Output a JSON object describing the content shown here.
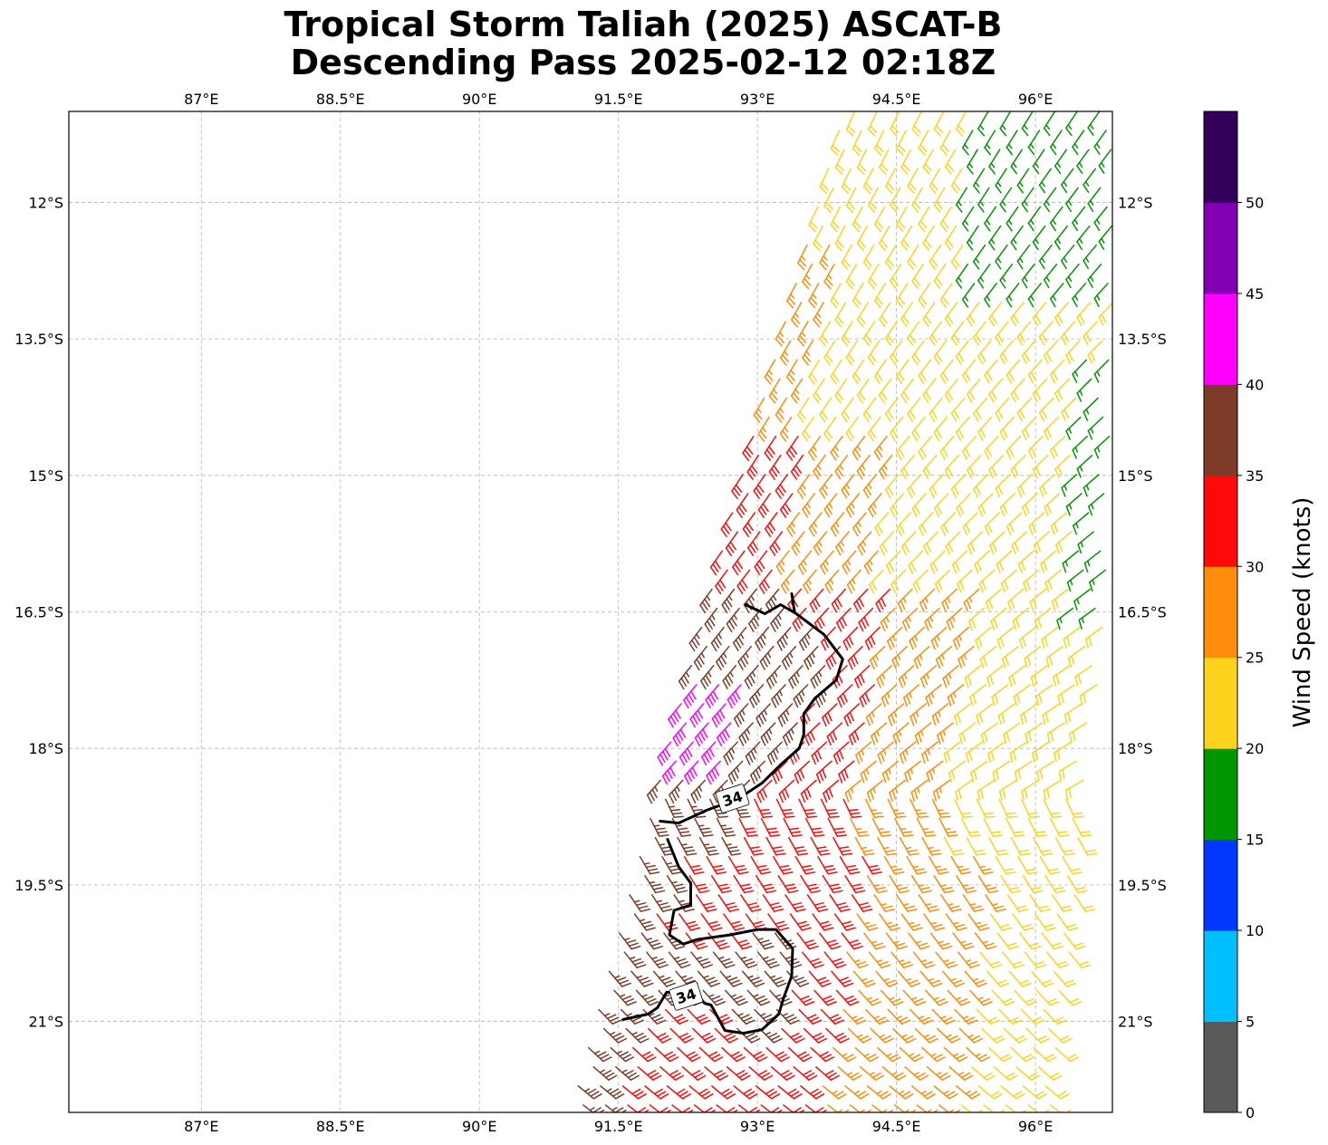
{
  "chart_data": {
    "type": "wind-barb-map",
    "title_line1": "Tropical Storm Taliah (2025) ASCAT-B",
    "title_line2": "Descending Pass 2025-02-12 02:18Z",
    "x_ticks": [
      {
        "value": 87.0,
        "label": "87°E"
      },
      {
        "value": 88.5,
        "label": "88.5°E"
      },
      {
        "value": 90.0,
        "label": "90°E"
      },
      {
        "value": 91.5,
        "label": "91.5°E"
      },
      {
        "value": 93.0,
        "label": "93°E"
      },
      {
        "value": 94.5,
        "label": "94.5°E"
      },
      {
        "value": 96.0,
        "label": "96°E"
      }
    ],
    "y_ticks": [
      {
        "value": -12.0,
        "label": "12°S"
      },
      {
        "value": -13.5,
        "label": "13.5°S"
      },
      {
        "value": -15.0,
        "label": "15°S"
      },
      {
        "value": -16.5,
        "label": "16.5°S"
      },
      {
        "value": -18.0,
        "label": "18°S"
      },
      {
        "value": -19.5,
        "label": "19.5°S"
      },
      {
        "value": -21.0,
        "label": "21°S"
      }
    ],
    "lon_range": [
      85.57,
      96.83
    ],
    "lat_range": [
      -22.0,
      -11.0
    ],
    "grid": true,
    "colorbar": {
      "label": "Wind Speed (knots)",
      "ticks": [
        "0",
        "5",
        "10",
        "15",
        "20",
        "25",
        "30",
        "35",
        "40",
        "45",
        "50"
      ],
      "bins": [
        {
          "min": 0,
          "max": 5,
          "color": "#5a5a5a"
        },
        {
          "min": 5,
          "max": 10,
          "color": "#00bfff"
        },
        {
          "min": 10,
          "max": 15,
          "color": "#0038ff"
        },
        {
          "min": 15,
          "max": 20,
          "color": "#009600"
        },
        {
          "min": 20,
          "max": 25,
          "color": "#ffd21e"
        },
        {
          "min": 25,
          "max": 30,
          "color": "#ff8c0a"
        },
        {
          "min": 30,
          "max": 35,
          "color": "#ff0a0a"
        },
        {
          "min": 35,
          "max": 40,
          "color": "#7d3c28"
        },
        {
          "min": 40,
          "max": 45,
          "color": "#ff00ff"
        },
        {
          "min": 45,
          "max": 50,
          "color": "#8200b4"
        },
        {
          "min": 50,
          "max": 55,
          "color": "#32005a"
        }
      ]
    },
    "contour_34kt": {
      "level_label": "34",
      "north_segment": [
        [
          92.87,
          -16.42
        ],
        [
          93.08,
          -16.52
        ],
        [
          93.25,
          -16.42
        ],
        [
          93.42,
          -16.52
        ],
        [
          93.72,
          -16.75
        ],
        [
          93.92,
          -17.02
        ],
        [
          93.85,
          -17.25
        ],
        [
          93.62,
          -17.45
        ],
        [
          93.5,
          -17.62
        ],
        [
          93.5,
          -17.85
        ],
        [
          93.45,
          -18.0
        ],
        [
          93.25,
          -18.18
        ],
        [
          93.05,
          -18.38
        ],
        [
          92.8,
          -18.55
        ],
        [
          92.45,
          -18.68
        ],
        [
          92.15,
          -18.82
        ],
        [
          91.95,
          -18.8
        ]
      ],
      "north_hook": [
        [
          93.37,
          -16.3
        ],
        [
          93.4,
          -16.5
        ]
      ],
      "south_segment": [
        [
          92.03,
          -19.0
        ],
        [
          92.15,
          -19.3
        ],
        [
          92.28,
          -19.48
        ],
        [
          92.28,
          -19.72
        ],
        [
          92.1,
          -19.78
        ],
        [
          92.05,
          -20.05
        ],
        [
          92.2,
          -20.15
        ],
        [
          92.35,
          -20.1
        ],
        [
          92.7,
          -20.05
        ],
        [
          93.0,
          -19.99
        ],
        [
          93.2,
          -19.99
        ],
        [
          93.38,
          -20.2
        ],
        [
          93.37,
          -20.5
        ],
        [
          93.28,
          -20.75
        ],
        [
          93.23,
          -20.92
        ],
        [
          93.05,
          -21.09
        ],
        [
          92.85,
          -21.13
        ],
        [
          92.65,
          -21.1
        ],
        [
          92.5,
          -20.82
        ],
        [
          92.43,
          -20.8
        ],
        [
          92.33,
          -20.68
        ],
        [
          92.02,
          -20.68
        ],
        [
          91.92,
          -20.85
        ],
        [
          91.82,
          -20.92
        ],
        [
          91.55,
          -20.98
        ]
      ],
      "label_positions": [
        [
          92.73,
          -18.55
        ],
        [
          92.23,
          -20.72
        ]
      ]
    },
    "wind_field": {
      "swath_west_edge": [
        [
          94.0,
          -11.0
        ],
        [
          92.9,
          -15.0
        ],
        [
          91.05,
          -22.0
        ]
      ],
      "swath_east_edge": [
        [
          96.87,
          -11.0
        ],
        [
          96.8,
          -16.0
        ],
        [
          96.2,
          -22.0
        ]
      ],
      "speed_regions_kt": [
        {
          "region": "north swath",
          "speed": 22
        },
        {
          "region": "northeast corner",
          "speed": 18
        },
        {
          "region": "eastern edge",
          "speed": 18
        },
        {
          "region": "west of swath center",
          "speed": 27
        },
        {
          "region": "inside 34-kt contour",
          "speed": 37
        },
        {
          "region": "northwest edge maximum",
          "speed": 42
        },
        {
          "region": "southwest",
          "speed": 32
        }
      ]
    }
  }
}
